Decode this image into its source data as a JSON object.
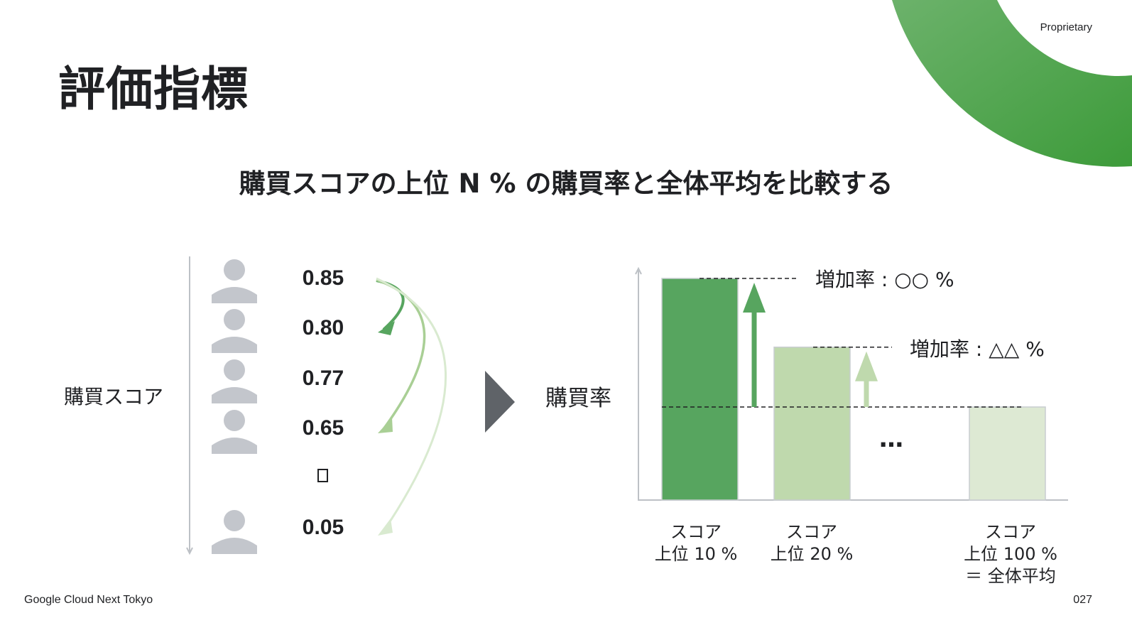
{
  "header": {
    "title": "評価指標",
    "proprietary": "Proprietary"
  },
  "subtitle": "購買スコアの上位 N % の購買率と全体平均を比較する",
  "colors": {
    "dark_green": "#57a55f",
    "light_green": "#bfd9ad",
    "pale_green": "#dde9d3",
    "person_gray": "#c3c6cc",
    "arrow_gray": "#5f6368",
    "accent_gradient_start": "#6cb26b",
    "accent_gradient_end": "#3d9b3a"
  },
  "left_diagram": {
    "axis_label": "購買スコア",
    "scores": [
      "0.85",
      "0.80",
      "0.77",
      "0.65",
      "0.05"
    ],
    "ellipsis_icon": "square-placeholder-icon",
    "person_icon": "person-icon",
    "arrow_icon": "curved-arrow-icon"
  },
  "process_arrow_icon": "play-triangle-icon",
  "chart_data": {
    "type": "bar",
    "ylabel": "購買率",
    "categories": [
      [
        "スコア",
        "上位 10 %"
      ],
      [
        "スコア",
        "上位 20 %"
      ],
      [
        "スコア",
        "上位 100 %",
        "＝ 全体平均"
      ]
    ],
    "values": [
      1.0,
      0.69,
      0.42
    ],
    "ylim": [
      0,
      1.05
    ],
    "gaps_between_bars_2_and_3": "…",
    "annotations": [
      {
        "text": "増加率 : ○○ %",
        "bar": 0
      },
      {
        "text": "増加率 : △△ %",
        "bar": 1
      }
    ]
  },
  "footer": {
    "brand": "Google Cloud Next Tokyo",
    "page_number": "027"
  }
}
